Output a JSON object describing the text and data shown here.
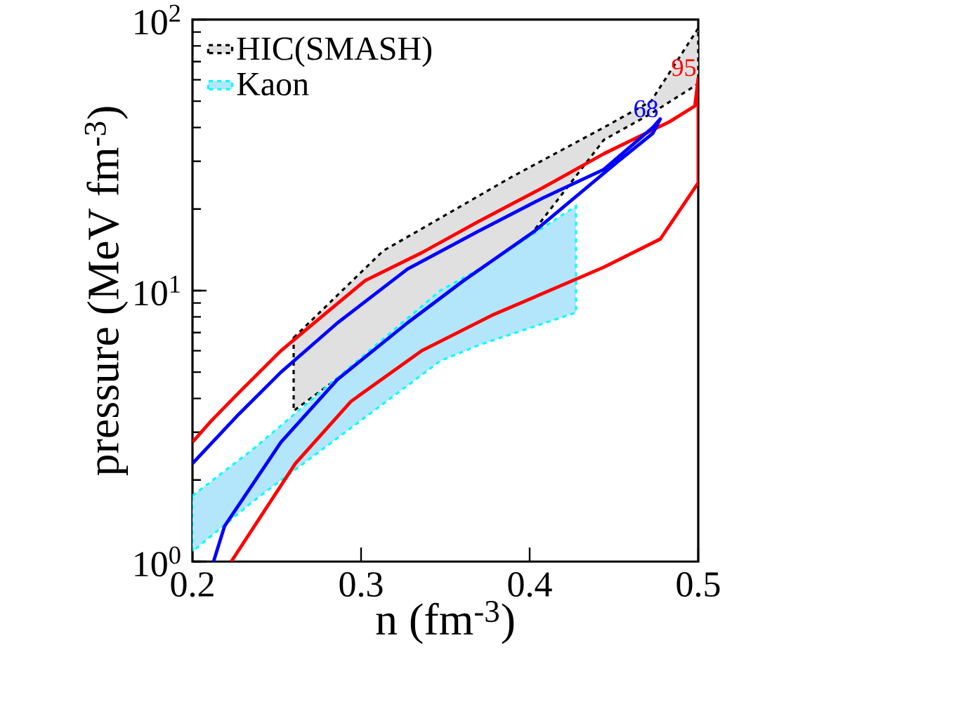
{
  "chart_data": {
    "type": "line",
    "xlabel": "n (fm$^{-3}$)",
    "ylabel": "pressure (MeV fm$^{-3}$)",
    "xlim": [
      0.2,
      0.5
    ],
    "ylim": [
      1,
      100
    ],
    "log": "y",
    "xticks": [
      0.2,
      0.3,
      0.4,
      0.5
    ],
    "yticks": [
      {
        "value": 1,
        "label": "10$^{0}$"
      },
      {
        "value": 10,
        "label": "10$^{1}$"
      },
      {
        "value": 100,
        "label": "10$^{2}$"
      }
    ],
    "grid": false,
    "legend": "top left",
    "marker": "none",
    "series": [
      {
        "name": "HIC(SMASH)",
        "type": "area",
        "color": "#000000",
        "line_style": "dashed",
        "x": [
          0.26,
          0.313,
          0.35,
          0.388,
          0.444,
          0.472,
          0.5
        ],
        "values": [
          null,
          null,
          null,
          null,
          null,
          null,
          null
        ],
        "lower": [
          3.6,
          6.3,
          9.3,
          12.7,
          36,
          45,
          58
        ],
        "upper": [
          6.7,
          14,
          19,
          26,
          40,
          50,
          93
        ]
      },
      {
        "name": "Kaon",
        "type": "area",
        "color": "#00ffff",
        "line_style": "dashed",
        "x": [
          0.2,
          0.236,
          0.347,
          0.37,
          0.4275
        ],
        "values": [
          null,
          null,
          null,
          null,
          null
        ],
        "lower": [
          1.09,
          1.67,
          5.5,
          6.3,
          8.3
        ],
        "upper": [
          1.75,
          2.6,
          10,
          12,
          20.5
        ]
      },
      {
        "color": "#ff0000",
        "line_style": "solid",
        "x": [
          0.2,
          0.211,
          0.2275,
          0.2525,
          0.2775,
          0.3025,
          0.336,
          0.369,
          0.408,
          0.444,
          0.483,
          0.498,
          0.5,
          0.5,
          0.4775,
          0.444,
          0.3775,
          0.336,
          0.294,
          0.261,
          0.223
        ],
        "values": [
          2.76,
          3.3,
          4.2,
          6.0,
          8.1,
          10.9,
          13.8,
          17.9,
          24,
          32,
          42,
          48,
          61,
          25,
          15.5,
          12.2,
          8.1,
          6.0,
          3.9,
          2.3,
          1.0
        ]
      },
      {
        "color": "#0000ff",
        "line_style": "solid",
        "x": [
          0.2,
          0.2275,
          0.2525,
          0.286,
          0.3275,
          0.369,
          0.408,
          0.444,
          0.473,
          0.4775,
          0.473,
          0.4525,
          0.4025,
          0.361,
          0.3275,
          0.286,
          0.2525,
          0.219,
          0.2125
        ],
        "values": [
          2.3,
          3.5,
          5.0,
          7.6,
          12.0,
          16.5,
          22,
          28,
          40,
          43,
          38,
          30,
          16.5,
          10.9,
          7.6,
          4.7,
          2.76,
          1.35,
          1.0
        ]
      }
    ],
    "annotations": [
      "95",
      "68"
    ]
  }
}
